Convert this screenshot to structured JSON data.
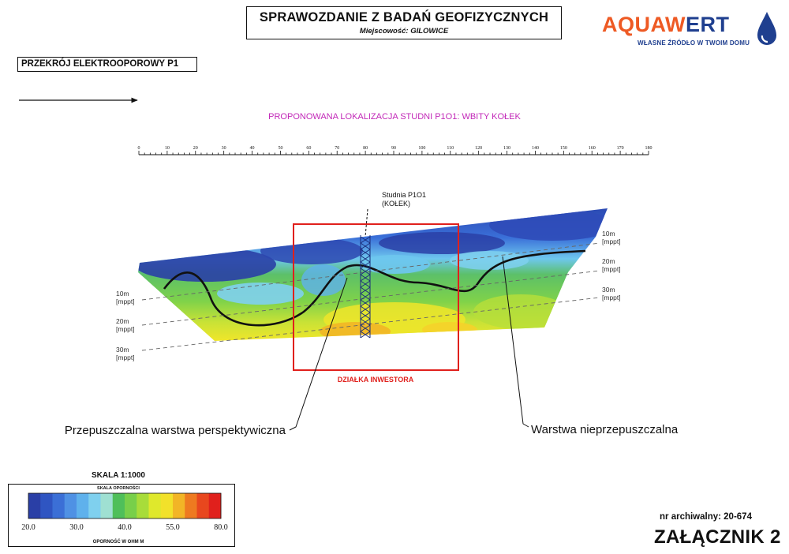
{
  "header": {
    "title": "SPRAWOZDANIE Z BADAŃ GEOFIZYCZNYCH",
    "subtitle": "Miejscowość: GILOWICE"
  },
  "logo": {
    "word_part1": "AQUAW",
    "word_part2": "ERT",
    "tagline": "WŁASNE ŹRÓDŁO W TWOIM DOMU",
    "brand_orange": "#ee5a24",
    "brand_blue": "#1f3f8f",
    "icon": "water-drop-icon"
  },
  "section_label": "PRZEKRÓJ ELEKTROOPOROWY P1",
  "proposed_location": "PROPONOWANA LOKALIZACJA STUDNI P1O1: WBITY KOŁEK",
  "ruler": {
    "ticks": [
      "0",
      "10",
      "20",
      "30",
      "40",
      "50",
      "60",
      "70",
      "80",
      "90",
      "100",
      "110",
      "120",
      "130",
      "140",
      "150",
      "160",
      "170",
      "180"
    ]
  },
  "well": {
    "line1": "Studnia P1O1",
    "line2": "(KOŁEK)"
  },
  "plot_label": "DZIAŁKA INWESTORA",
  "depth_labels": {
    "left": [
      {
        "depth": "10m",
        "unit": "[mppt]"
      },
      {
        "depth": "20m",
        "unit": "[mppt]"
      },
      {
        "depth": "30m",
        "unit": "[mppt]"
      }
    ],
    "right": [
      {
        "depth": "10m",
        "unit": "[mppt]"
      },
      {
        "depth": "20m",
        "unit": "[mppt]"
      },
      {
        "depth": "30m",
        "unit": "[mppt]"
      }
    ]
  },
  "annotations": {
    "permeable": "Przepuszczalna warstwa perspektywiczna",
    "impermeable": "Warstwa nieprzepuszczalna"
  },
  "legend": {
    "scale": "SKALA 1:1000",
    "title": "SKALA OPORNOŚCI",
    "unit": "OPORNOŚĆ W OHM M",
    "labels": [
      "20.0",
      "30.0",
      "40.0",
      "55.0",
      "80.0"
    ],
    "colors": [
      "#2a3fa6",
      "#2f55c2",
      "#3b6fd6",
      "#4f91e4",
      "#5fb1ec",
      "#7fd0ee",
      "#9fe0d2",
      "#4fbf5a",
      "#78cf4a",
      "#a8dc3a",
      "#dfe82c",
      "#f2e12a",
      "#f2b526",
      "#ee7a20",
      "#e8471e",
      "#e0201c"
    ]
  },
  "footer": {
    "archival": "nr archiwalny: 20-674",
    "annex": "ZAŁĄCZNIK 2"
  }
}
